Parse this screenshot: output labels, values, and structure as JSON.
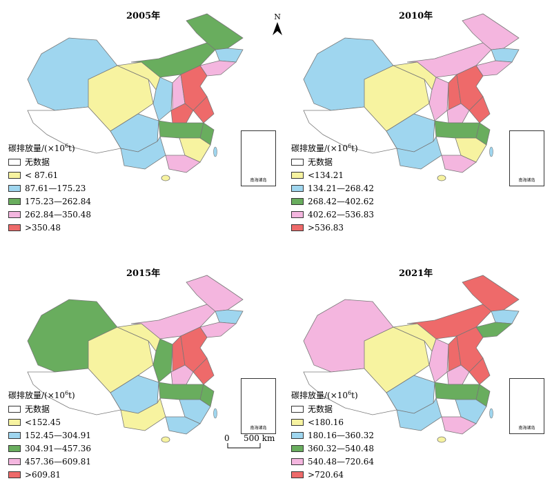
{
  "colors": {
    "no_data": "#ffffff",
    "class1": "#f7f3a0",
    "class2": "#9fd6ef",
    "class3": "#69ad5e",
    "class4": "#f4b6df",
    "class5": "#ee6a6a",
    "border": "#777777",
    "sea_islands": "#9fd6ef"
  },
  "legend_title_prefix": "碳排放量/(×10",
  "legend_title_exp": "6",
  "legend_title_suffix": "t)",
  "no_data_label": "无数据",
  "north_label": "N",
  "scale_label": "500 km",
  "scale_zero": "0",
  "inset_label": "南海诸岛",
  "panels": [
    {
      "title": "2005年",
      "classes": [
        "< 87.61",
        "87.61—175.23",
        "175.23—262.84",
        "262.84—350.48",
        ">350.48"
      ]
    },
    {
      "title": "2010年",
      "classes": [
        "<134.21",
        "134.21—268.42",
        "268.42—402.62",
        "402.62—536.83",
        ">536.83"
      ]
    },
    {
      "title": "2015年",
      "classes": [
        "<152.45",
        "152.45—304.91",
        "304.91—457.36",
        "457.36—609.81",
        ">609.81"
      ]
    },
    {
      "title": "2021年",
      "classes": [
        "<180.16",
        "180.16—360.32",
        "360.32—540.48",
        "540.48—720.64",
        ">720.64"
      ]
    }
  ]
}
